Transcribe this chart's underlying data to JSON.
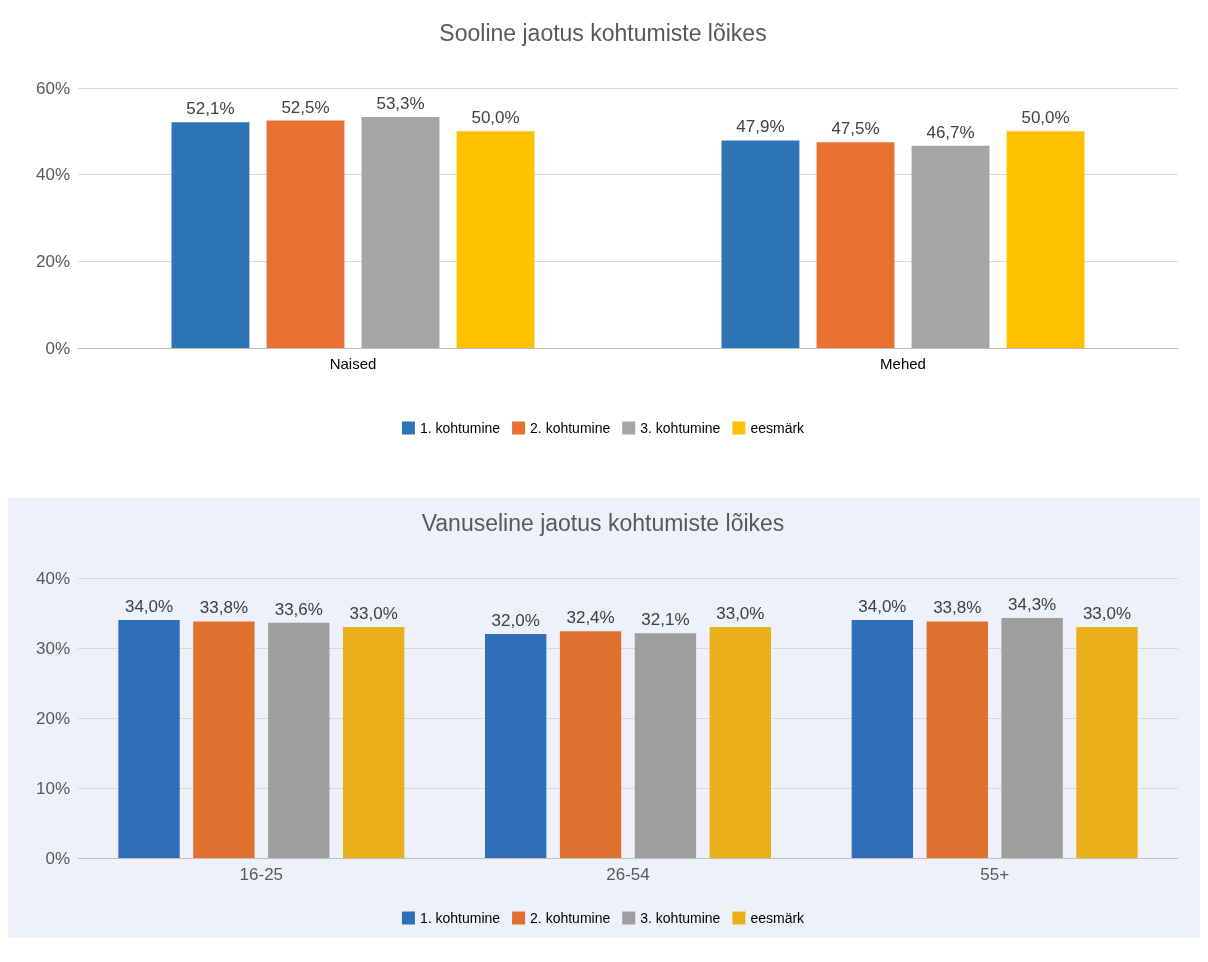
{
  "chart_data": [
    {
      "type": "bar",
      "title": "Sooline jaotus kohtumiste lõikes",
      "categories": [
        "Naised",
        "Mehed"
      ],
      "series": [
        {
          "name": "1. kohtumine",
          "color": "#2e75b6",
          "values": [
            52.1,
            47.9
          ],
          "value_labels": [
            "52,1%",
            "47,9%"
          ]
        },
        {
          "name": "2. kohtumine",
          "color": "#e97132",
          "values": [
            52.5,
            47.5
          ],
          "value_labels": [
            "52,5%",
            "47,5%"
          ]
        },
        {
          "name": "3. kohtumine",
          "color": "#a5a5a5",
          "values": [
            53.3,
            46.7
          ],
          "value_labels": [
            "53,3%",
            "46,7%"
          ]
        },
        {
          "name": "eesmärk",
          "color": "#ffc000",
          "values": [
            50.0,
            50.0
          ],
          "value_labels": [
            "50,0%",
            "50,0%"
          ]
        }
      ],
      "ylim": [
        0,
        60
      ],
      "yticks": [
        {
          "value": 0,
          "label": "0%"
        },
        {
          "value": 20,
          "label": "20%"
        },
        {
          "value": 40,
          "label": "40%"
        },
        {
          "value": 60,
          "label": "60%"
        }
      ],
      "grid": "y",
      "legend": "bottom"
    },
    {
      "type": "bar",
      "title": "Vanuseline jaotus kohtumiste lõikes",
      "categories": [
        "16-25",
        "26-54",
        "55+"
      ],
      "series": [
        {
          "name": "1. kohtumine",
          "color": "#2e6fb7",
          "values": [
            34.0,
            32.0,
            34.0
          ],
          "value_labels": [
            "34,0%",
            "32,0%",
            "34,0%"
          ]
        },
        {
          "name": "2. kohtumine",
          "color": "#e07030",
          "values": [
            33.8,
            32.4,
            33.8
          ],
          "value_labels": [
            "33,8%",
            "32,4%",
            "33,8%"
          ]
        },
        {
          "name": "3. kohtumine",
          "color": "#9e9e9e",
          "values": [
            33.6,
            32.1,
            34.3
          ],
          "value_labels": [
            "33,6%",
            "32,1%",
            "34,3%"
          ]
        },
        {
          "name": "eesmärk",
          "color": "#eab01a",
          "values": [
            33.0,
            33.0,
            33.0
          ],
          "value_labels": [
            "33,0%",
            "33,0%",
            "33,0%"
          ]
        }
      ],
      "ylim": [
        0,
        40
      ],
      "yticks": [
        {
          "value": 0,
          "label": "0%"
        },
        {
          "value": 10,
          "label": "10%"
        },
        {
          "value": 20,
          "label": "20%"
        },
        {
          "value": 30,
          "label": "30%"
        },
        {
          "value": 40,
          "label": "40%"
        }
      ],
      "grid": "y",
      "legend": "bottom"
    }
  ]
}
